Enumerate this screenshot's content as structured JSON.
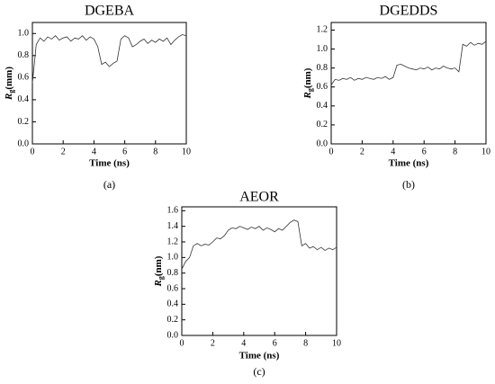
{
  "chart_data": [
    {
      "type": "line",
      "title": "DGEBA",
      "panel_label": "(a)",
      "x_label": "Time (ns)",
      "y_label": {
        "symbol": "R",
        "subscript": "g",
        "unit": "(mm)"
      },
      "xlim": [
        0,
        10
      ],
      "xticks": [
        0,
        2,
        4,
        6,
        8,
        10
      ],
      "ylim": [
        0,
        1.1
      ],
      "yticks": [
        {
          "value": 0,
          "label": "0.0"
        },
        {
          "value": 0.2,
          "label": "0.2"
        },
        {
          "value": 0.4,
          "label": "0.4"
        },
        {
          "value": 0.6,
          "label": "0.6"
        },
        {
          "value": 0.8,
          "label": "0.8"
        },
        {
          "value": 1,
          "label": "1.0"
        }
      ],
      "x": [
        0,
        0.25,
        0.5,
        0.75,
        1,
        1.25,
        1.5,
        1.75,
        2,
        2.25,
        2.5,
        2.75,
        3,
        3.25,
        3.5,
        3.75,
        4,
        4.25,
        4.5,
        4.75,
        5,
        5.25,
        5.5,
        5.75,
        6,
        6.25,
        6.5,
        6.75,
        7,
        7.25,
        7.5,
        7.75,
        8,
        8.25,
        8.5,
        8.75,
        9,
        9.25,
        9.5,
        9.75,
        10
      ],
      "series": [
        {
          "color": "#333333",
          "values": [
            0.55,
            0.9,
            0.96,
            0.93,
            0.97,
            0.95,
            0.98,
            0.94,
            0.96,
            0.97,
            0.93,
            0.96,
            0.95,
            0.98,
            0.94,
            0.97,
            0.95,
            0.88,
            0.72,
            0.74,
            0.7,
            0.73,
            0.75,
            0.95,
            0.98,
            0.96,
            0.88,
            0.9,
            0.93,
            0.95,
            0.91,
            0.94,
            0.92,
            0.95,
            0.93,
            0.96,
            0.9,
            0.94,
            0.97,
            0.99,
            0.98
          ]
        }
      ]
    },
    {
      "type": "line",
      "title": "DGEDDS",
      "panel_label": "(b)",
      "x_label": "Time (ns)",
      "y_label": {
        "symbol": "R",
        "subscript": "g",
        "unit": "(nm)"
      },
      "xlim": [
        0,
        10
      ],
      "xticks": [
        0,
        2,
        4,
        6,
        8,
        10
      ],
      "ylim": [
        0,
        1.28
      ],
      "yticks": [
        {
          "value": 0,
          "label": "0.0"
        },
        {
          "value": 0.2,
          "label": "0.2"
        },
        {
          "value": 0.4,
          "label": "0.4"
        },
        {
          "value": 0.6,
          "label": "0.6"
        },
        {
          "value": 0.8,
          "label": "0.8"
        },
        {
          "value": 1,
          "label": "1.0"
        },
        {
          "value": 1.2,
          "label": "1.2"
        }
      ],
      "x": [
        0,
        0.25,
        0.5,
        0.75,
        1,
        1.25,
        1.5,
        1.75,
        2,
        2.25,
        2.5,
        2.75,
        3,
        3.25,
        3.5,
        3.75,
        4,
        4.25,
        4.5,
        4.75,
        5,
        5.25,
        5.5,
        5.75,
        6,
        6.25,
        6.5,
        6.75,
        7,
        7.25,
        7.5,
        7.75,
        8,
        8.25,
        8.5,
        8.75,
        9,
        9.25,
        9.5,
        9.75,
        10
      ],
      "series": [
        {
          "color": "#333333",
          "values": [
            0.62,
            0.68,
            0.67,
            0.69,
            0.68,
            0.7,
            0.67,
            0.69,
            0.68,
            0.7,
            0.69,
            0.68,
            0.7,
            0.69,
            0.71,
            0.68,
            0.7,
            0.83,
            0.84,
            0.82,
            0.8,
            0.79,
            0.78,
            0.8,
            0.79,
            0.81,
            0.78,
            0.8,
            0.79,
            0.82,
            0.8,
            0.79,
            0.8,
            0.76,
            1.05,
            1.03,
            1.07,
            1.04,
            1.06,
            1.05,
            1.08
          ]
        }
      ]
    },
    {
      "type": "line",
      "title": "AEOR",
      "panel_label": "(c)",
      "x_label": "Time (ns)",
      "y_label": {
        "symbol": "R",
        "subscript": "g",
        "unit": "(nm)"
      },
      "xlim": [
        0,
        10
      ],
      "xticks": [
        0,
        2,
        4,
        6,
        8,
        10
      ],
      "ylim": [
        0,
        1.65
      ],
      "yticks": [
        {
          "value": 0,
          "label": "0.0"
        },
        {
          "value": 0.2,
          "label": "0.2"
        },
        {
          "value": 0.4,
          "label": "0.4"
        },
        {
          "value": 0.6,
          "label": "0.6"
        },
        {
          "value": 0.8,
          "label": "0.8"
        },
        {
          "value": 1,
          "label": "1.0"
        },
        {
          "value": 1.2,
          "label": "1.2"
        },
        {
          "value": 1.4,
          "label": "1.4"
        },
        {
          "value": 1.6,
          "label": "1.6"
        }
      ],
      "x": [
        0,
        0.25,
        0.5,
        0.75,
        1,
        1.25,
        1.5,
        1.75,
        2,
        2.25,
        2.5,
        2.75,
        3,
        3.25,
        3.5,
        3.75,
        4,
        4.25,
        4.5,
        4.75,
        5,
        5.25,
        5.5,
        5.75,
        6,
        6.25,
        6.5,
        6.75,
        7,
        7.25,
        7.5,
        7.75,
        8,
        8.25,
        8.5,
        8.75,
        9,
        9.25,
        9.5,
        9.75,
        10
      ],
      "series": [
        {
          "color": "#333333",
          "values": [
            0.85,
            0.95,
            1.0,
            1.15,
            1.18,
            1.15,
            1.17,
            1.16,
            1.2,
            1.25,
            1.24,
            1.28,
            1.35,
            1.38,
            1.37,
            1.4,
            1.38,
            1.36,
            1.39,
            1.37,
            1.4,
            1.35,
            1.38,
            1.36,
            1.33,
            1.37,
            1.35,
            1.4,
            1.45,
            1.48,
            1.46,
            1.15,
            1.18,
            1.12,
            1.14,
            1.1,
            1.13,
            1.09,
            1.12,
            1.1,
            1.13
          ]
        }
      ]
    }
  ]
}
